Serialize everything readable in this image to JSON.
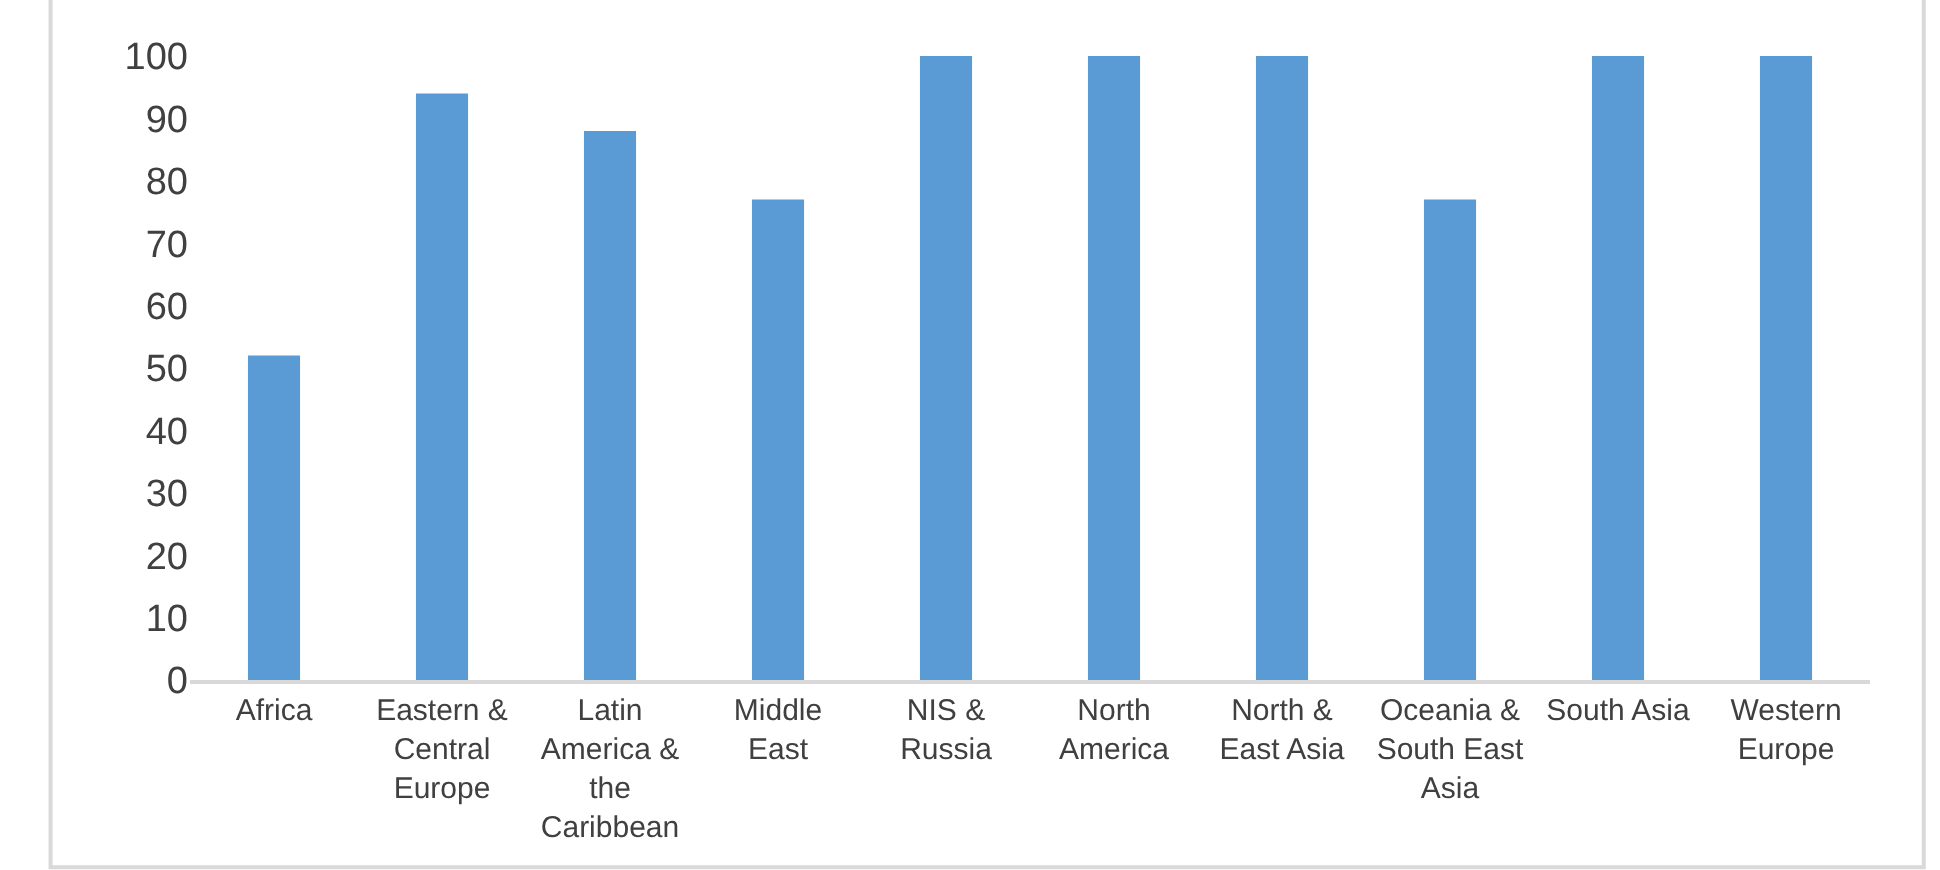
{
  "chart_data": {
    "type": "bar",
    "categories": [
      "Africa",
      "Eastern & Central Europe",
      "Latin America & the Caribbean",
      "Middle East",
      "NIS & Russia",
      "North America",
      "North & East Asia",
      "Oceania & South East Asia",
      "South Asia",
      "Western Europe"
    ],
    "values": [
      52,
      94,
      88,
      77,
      100,
      100,
      100,
      77,
      100,
      100
    ],
    "color": "#5b9bd5",
    "ylim": [
      0,
      100
    ],
    "yticks": [
      0,
      10,
      20,
      30,
      40,
      50,
      60,
      70,
      80,
      90,
      100
    ],
    "grid": false,
    "legend": false
  }
}
